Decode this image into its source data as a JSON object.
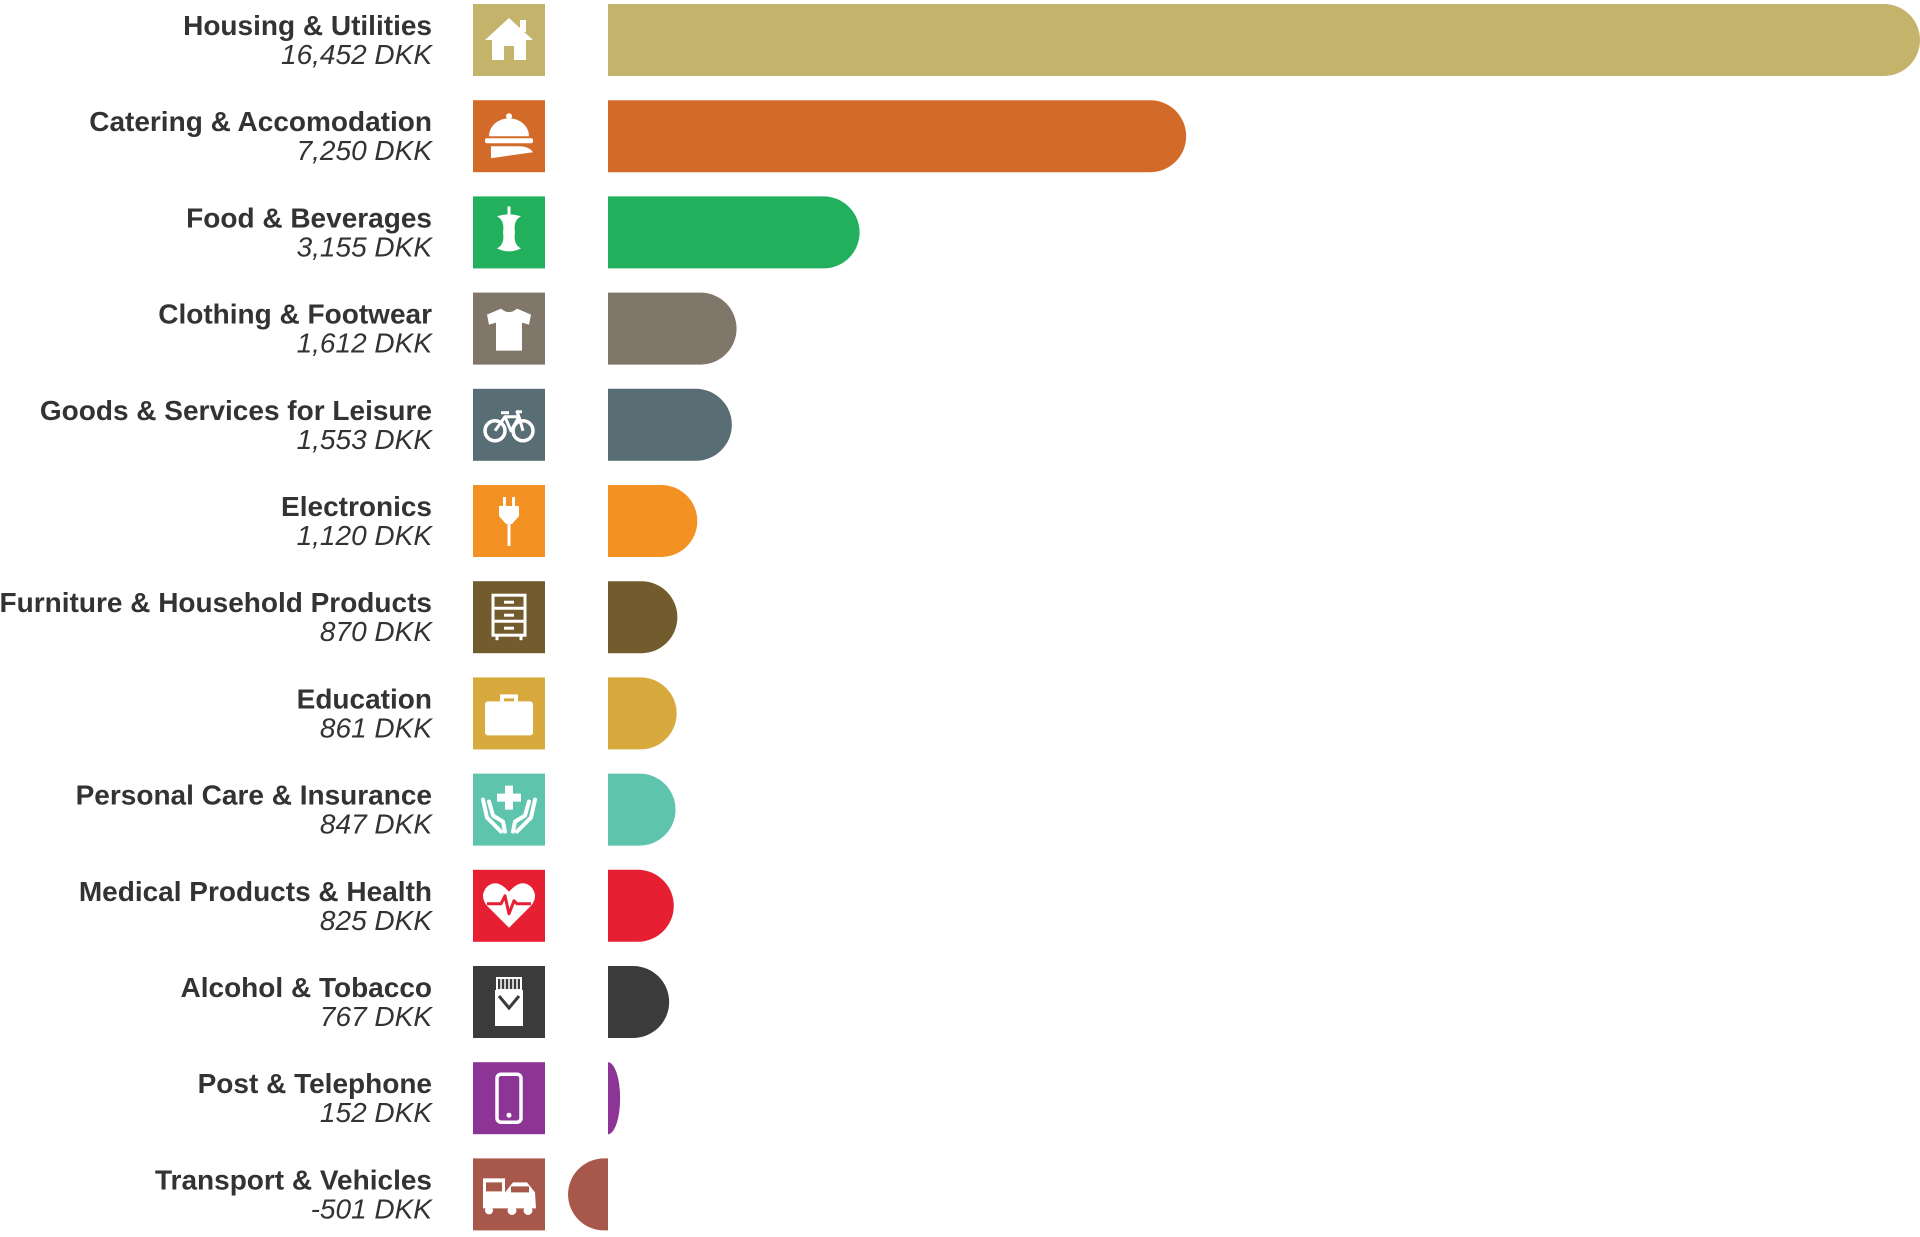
{
  "chart_data": {
    "type": "bar",
    "orientation": "horizontal",
    "unit": "DKK",
    "categories": [
      "Housing & Utilities",
      "Catering & Accomodation",
      "Food & Beverages",
      "Clothing & Footwear",
      "Goods & Services for Leisure",
      "Electronics",
      "Furniture & Household Products",
      "Education",
      "Personal Care & Insurance",
      "Medical Products & Health",
      "Alcohol & Tobacco",
      "Post & Telephone",
      "Transport & Vehicles"
    ],
    "values": [
      16452,
      7250,
      3155,
      1612,
      1553,
      1120,
      870,
      861,
      847,
      825,
      767,
      152,
      -501
    ],
    "value_labels": [
      "16,452 DKK",
      "7,250 DKK",
      "3,155 DKK",
      "1,612 DKK",
      "1,553 DKK",
      "1,120 DKK",
      "870 DKK",
      "861 DKK",
      "847 DKK",
      "825 DKK",
      "767 DKK",
      "152 DKK",
      "-501 DKK"
    ],
    "colors": [
      "#c4b36b",
      "#d26a2a",
      "#22b05c",
      "#80766a",
      "#586d74",
      "#f39223",
      "#725c2d",
      "#d8aa3d",
      "#5ec4ad",
      "#e71f32",
      "#3b3b3b",
      "#8d3596",
      "#a8574b"
    ],
    "icons": [
      "house-icon",
      "cloche-icon",
      "apple-core-icon",
      "tshirt-icon",
      "bicycle-icon",
      "plug-icon",
      "cabinet-icon",
      "briefcase-icon",
      "hands-cross-icon",
      "heart-pulse-icon",
      "cigarette-pack-icon",
      "phone-icon",
      "car-bus-icon"
    ],
    "xlim": [
      -501,
      16452
    ],
    "title": "",
    "xlabel": "",
    "ylabel": "",
    "grid": false,
    "legend": "none"
  }
}
